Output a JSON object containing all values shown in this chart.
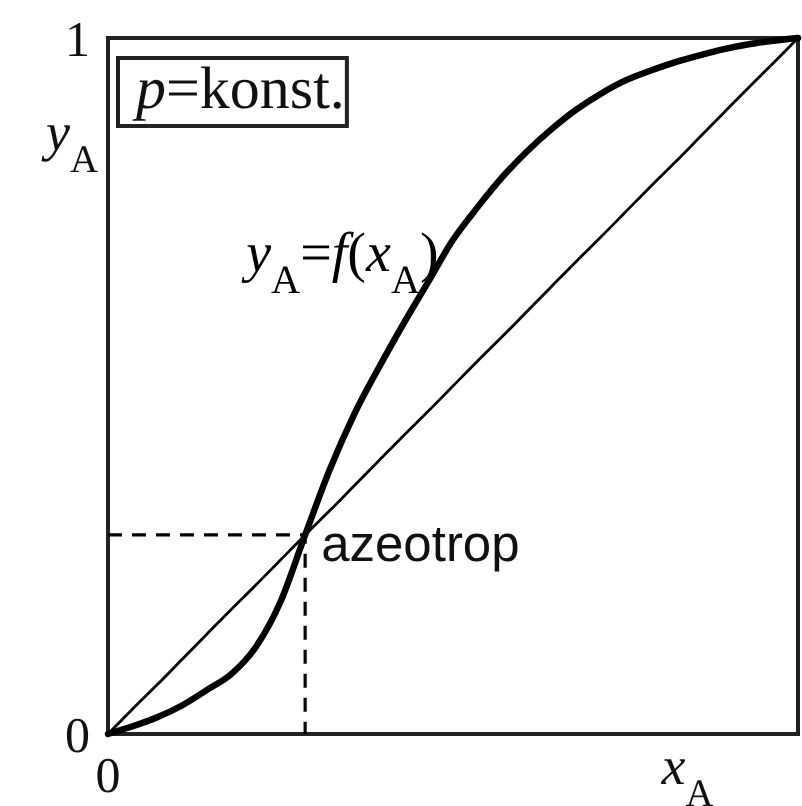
{
  "chart_data": {
    "type": "line",
    "xlabel": "x$_{A}$",
    "ylabel": "y$_{A}$",
    "ylim": [
      0,
      1
    ],
    "yticks": [
      0,
      1
    ],
    "categories": [
      "0",
      null,
      null,
      null,
      null,
      null,
      null,
      null,
      null,
      null,
      null,
      null,
      null,
      null,
      null,
      null,
      null,
      null,
      null,
      null,
      null,
      null,
      null,
      null,
      null,
      null,
      null,
      null,
      null
    ],
    "annotations": [
      "p=konst.",
      "azeotrop"
    ],
    "series": [
      {
        "name": "y$_{A}$=f(x$_{A}$)",
        "color": "#000000",
        "values": [
          0,
          0.011,
          0.024,
          0.041,
          0.063,
          0.086,
          0.125,
          0.19,
          0.286,
          0.38,
          0.46,
          0.527,
          0.59,
          0.65,
          0.71,
          0.757,
          0.8,
          0.837,
          0.869,
          0.897,
          0.92,
          0.939,
          0.953,
          0.965,
          0.975,
          0.984,
          0.991,
          0.996,
          1
        ]
      },
      {
        "color": "#000000",
        "values": [
          0,
          0.036,
          0.071,
          0.107,
          0.143,
          0.179,
          0.214,
          0.25,
          0.286,
          0.321,
          0.357,
          0.393,
          0.429,
          0.464,
          0.5,
          0.536,
          0.571,
          0.607,
          0.643,
          0.679,
          0.714,
          0.75,
          0.786,
          0.821,
          0.857,
          0.893,
          0.929,
          0.964,
          1
        ]
      },
      {
        "type": "step",
        "color": "#000000",
        "line_style": "dashed",
        "values": [
          0.286,
          0.286,
          0.286,
          0.286,
          0.286,
          0.286,
          0.286,
          0.286,
          0,
          null,
          null,
          null,
          null,
          null,
          null,
          null,
          null,
          null,
          null,
          null,
          null,
          null,
          null,
          null,
          null,
          null,
          null,
          null,
          null
        ]
      }
    ]
  }
}
